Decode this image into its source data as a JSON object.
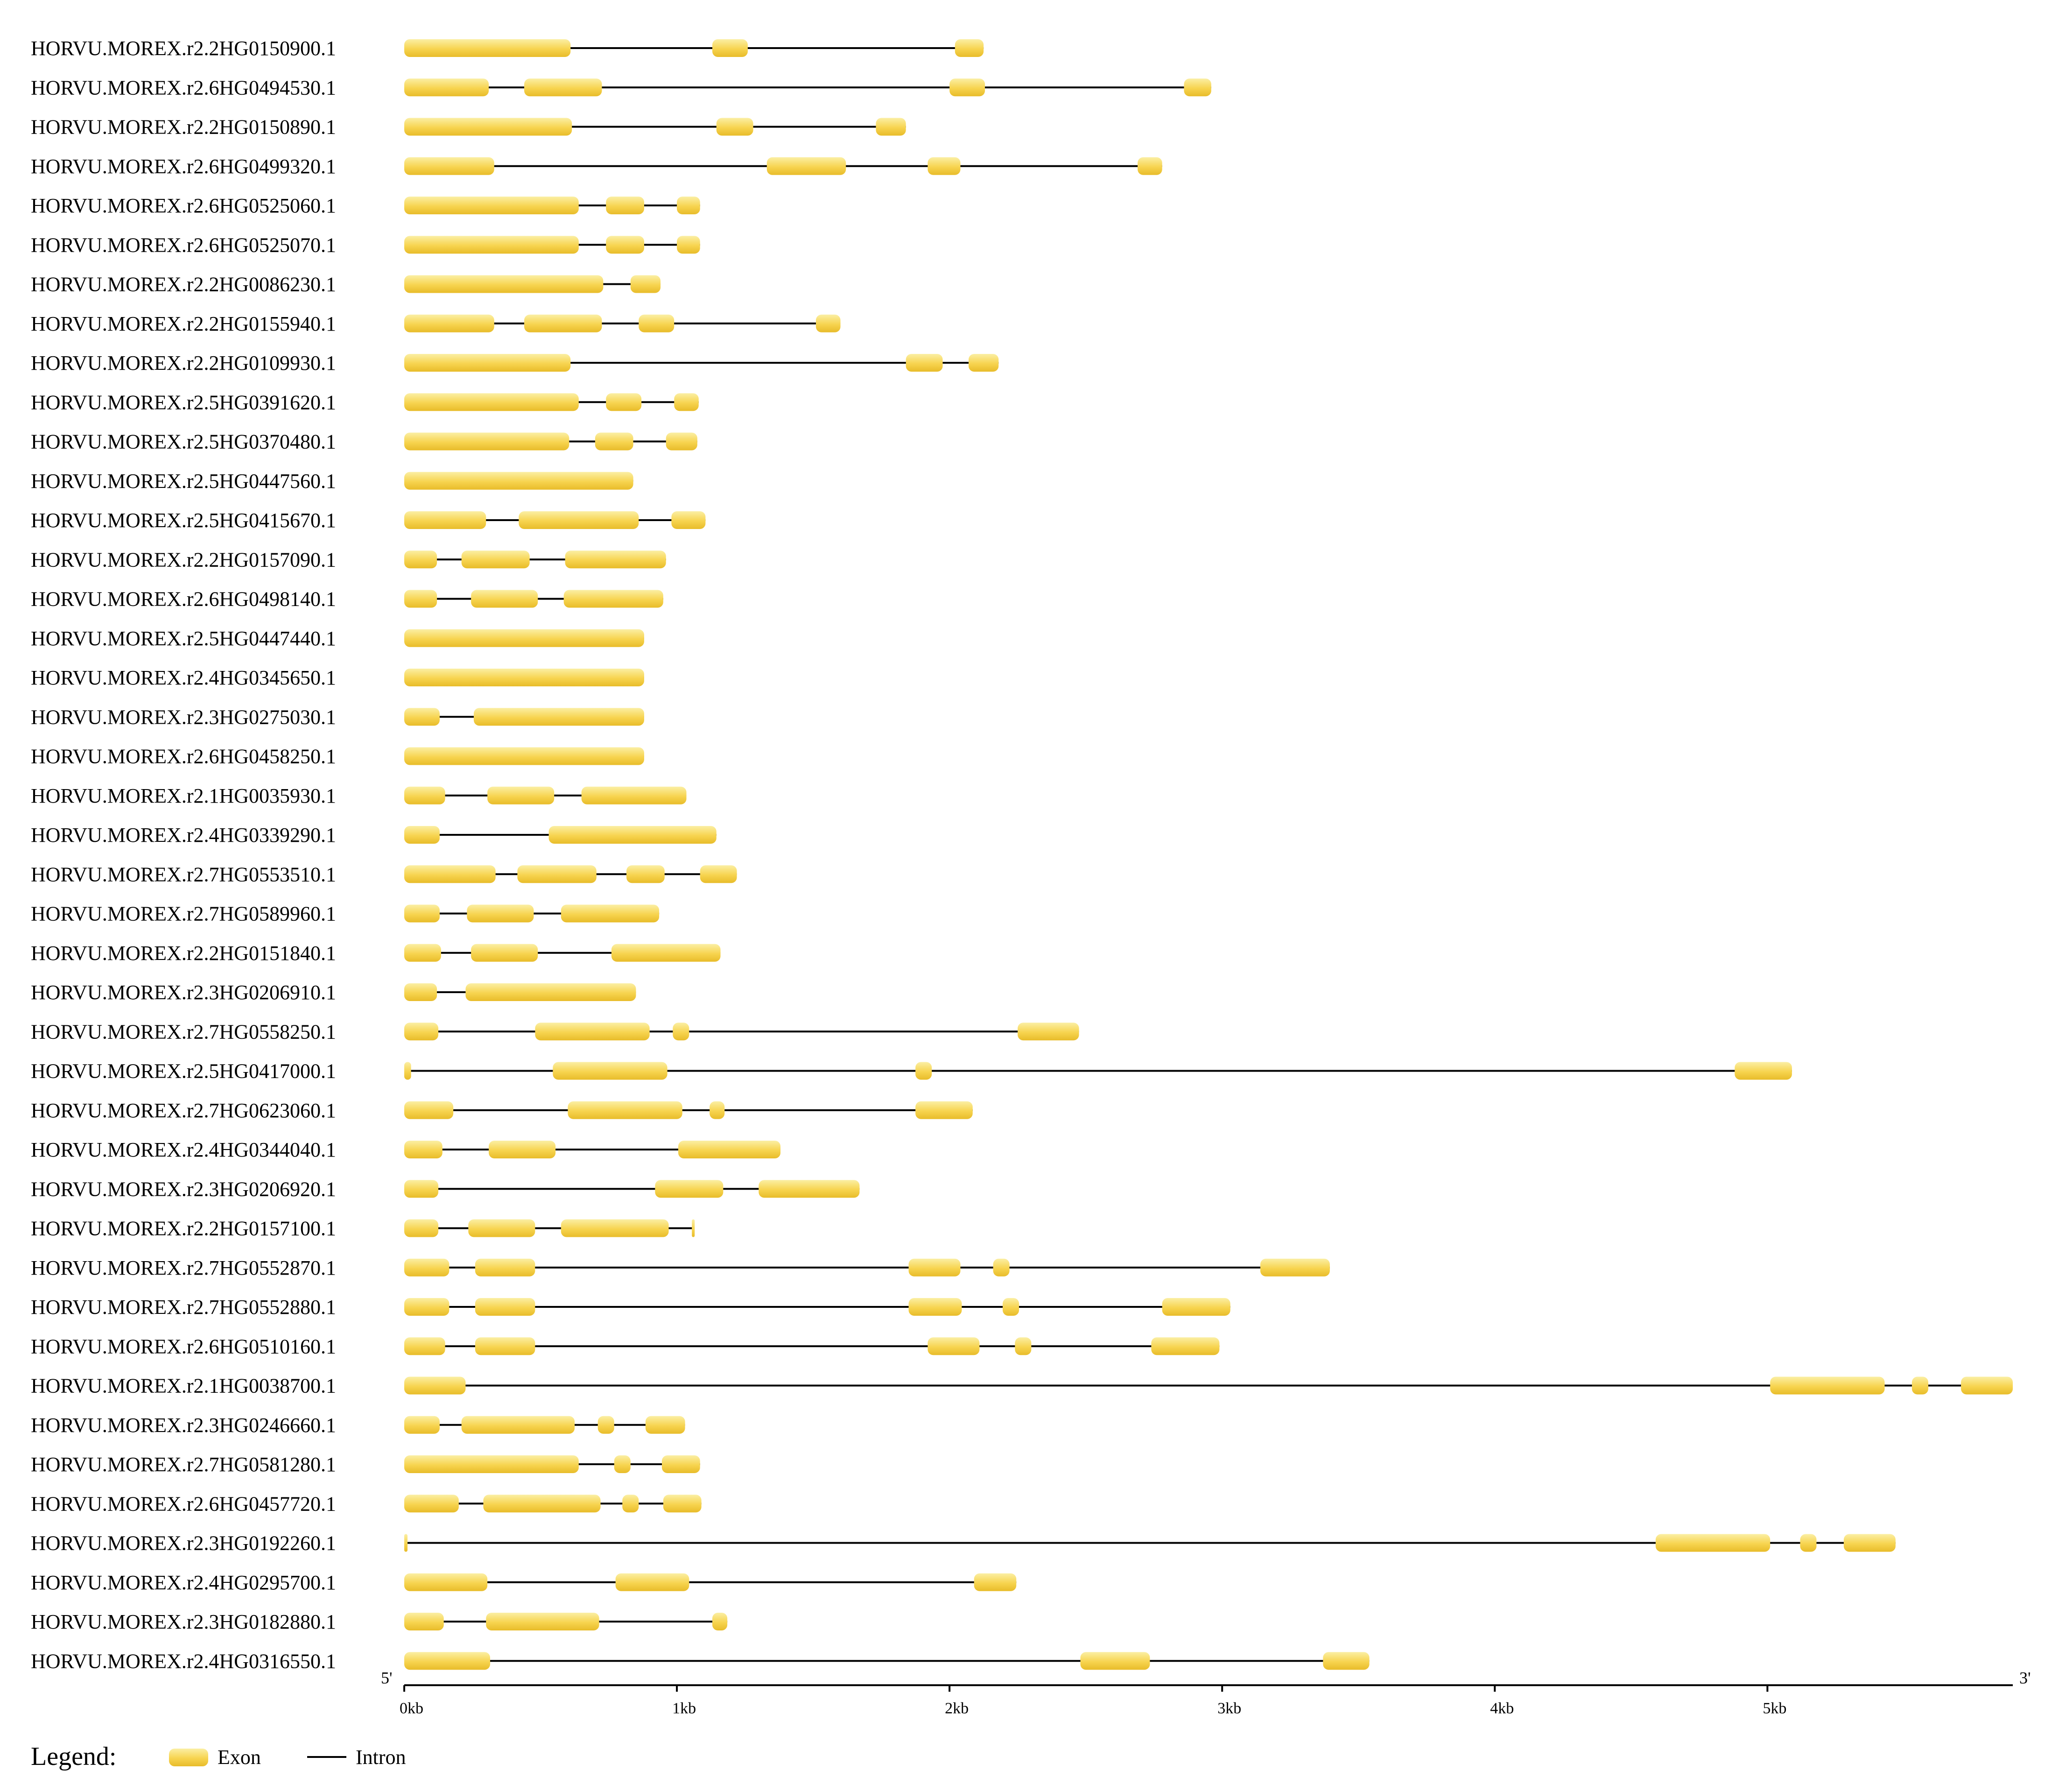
{
  "chart_data": {
    "type": "gene-structure",
    "unit": "bp",
    "axis": {
      "start_label": "5'",
      "end_label": "3'",
      "range": [
        0,
        5900
      ],
      "ticks": [
        {
          "value": 0,
          "label": "0kb"
        },
        {
          "value": 1000,
          "label": "1kb"
        },
        {
          "value": 2000,
          "label": "2kb"
        },
        {
          "value": 3000,
          "label": "3kb"
        },
        {
          "value": 4000,
          "label": "4kb"
        },
        {
          "value": 5000,
          "label": "5kb"
        }
      ]
    },
    "genes": [
      {
        "name": "HORVU.MOREX.r2.2HG0150900.1",
        "exons": [
          [
            0,
            610
          ],
          [
            1130,
            1260
          ],
          [
            2020,
            2125
          ]
        ]
      },
      {
        "name": "HORVU.MOREX.r2.6HG0494530.1",
        "exons": [
          [
            0,
            310
          ],
          [
            440,
            725
          ],
          [
            2000,
            2130
          ],
          [
            2860,
            2960
          ]
        ]
      },
      {
        "name": "HORVU.MOREX.r2.2HG0150890.1",
        "exons": [
          [
            0,
            615
          ],
          [
            1145,
            1280
          ],
          [
            1730,
            1840
          ]
        ]
      },
      {
        "name": "HORVU.MOREX.r2.6HG0499320.1",
        "exons": [
          [
            0,
            330
          ],
          [
            1330,
            1620
          ],
          [
            1920,
            2040
          ],
          [
            2690,
            2780
          ]
        ]
      },
      {
        "name": "HORVU.MOREX.r2.6HG0525060.1",
        "exons": [
          [
            0,
            640
          ],
          [
            740,
            880
          ],
          [
            1000,
            1085
          ]
        ]
      },
      {
        "name": "HORVU.MOREX.r2.6HG0525070.1",
        "exons": [
          [
            0,
            640
          ],
          [
            740,
            880
          ],
          [
            1000,
            1085
          ]
        ]
      },
      {
        "name": "HORVU.MOREX.r2.2HG0086230.1",
        "exons": [
          [
            0,
            730
          ],
          [
            830,
            940
          ]
        ]
      },
      {
        "name": "HORVU.MOREX.r2.2HG0155940.1",
        "exons": [
          [
            0,
            330
          ],
          [
            440,
            725
          ],
          [
            860,
            990
          ],
          [
            1510,
            1600
          ]
        ]
      },
      {
        "name": "HORVU.MOREX.r2.2HG0109930.1",
        "exons": [
          [
            0,
            610
          ],
          [
            1840,
            1975
          ],
          [
            2070,
            2180
          ]
        ]
      },
      {
        "name": "HORVU.MOREX.r2.5HG0391620.1",
        "exons": [
          [
            0,
            640
          ],
          [
            740,
            870
          ],
          [
            990,
            1080
          ]
        ]
      },
      {
        "name": "HORVU.MOREX.r2.5HG0370480.1",
        "exons": [
          [
            0,
            605
          ],
          [
            700,
            840
          ],
          [
            960,
            1075
          ]
        ]
      },
      {
        "name": "HORVU.MOREX.r2.5HG0447560.1",
        "exons": [
          [
            0,
            840
          ]
        ]
      },
      {
        "name": "HORVU.MOREX.r2.5HG0415670.1",
        "exons": [
          [
            0,
            300
          ],
          [
            420,
            860
          ],
          [
            980,
            1105
          ]
        ]
      },
      {
        "name": "HORVU.MOREX.r2.2HG0157090.1",
        "exons": [
          [
            0,
            120
          ],
          [
            210,
            460
          ],
          [
            590,
            960
          ]
        ]
      },
      {
        "name": "HORVU.MOREX.r2.6HG0498140.1",
        "exons": [
          [
            0,
            120
          ],
          [
            245,
            490
          ],
          [
            585,
            950
          ]
        ]
      },
      {
        "name": "HORVU.MOREX.r2.5HG0447440.1",
        "exons": [
          [
            0,
            880
          ]
        ]
      },
      {
        "name": "HORVU.MOREX.r2.4HG0345650.1",
        "exons": [
          [
            0,
            880
          ]
        ]
      },
      {
        "name": "HORVU.MOREX.r2.3HG0275030.1",
        "exons": [
          [
            0,
            130
          ],
          [
            255,
            880
          ]
        ]
      },
      {
        "name": "HORVU.MOREX.r2.6HG0458250.1",
        "exons": [
          [
            0,
            880
          ]
        ]
      },
      {
        "name": "HORVU.MOREX.r2.1HG0035930.1",
        "exons": [
          [
            0,
            150
          ],
          [
            305,
            550
          ],
          [
            650,
            1035
          ]
        ]
      },
      {
        "name": "HORVU.MOREX.r2.4HG0339290.1",
        "exons": [
          [
            0,
            130
          ],
          [
            530,
            1145
          ]
        ]
      },
      {
        "name": "HORVU.MOREX.r2.7HG0553510.1",
        "exons": [
          [
            0,
            335
          ],
          [
            415,
            705
          ],
          [
            815,
            955
          ],
          [
            1085,
            1220
          ]
        ]
      },
      {
        "name": "HORVU.MOREX.r2.7HG0589960.1",
        "exons": [
          [
            0,
            130
          ],
          [
            230,
            475
          ],
          [
            575,
            935
          ]
        ]
      },
      {
        "name": "HORVU.MOREX.r2.2HG0151840.1",
        "exons": [
          [
            0,
            135
          ],
          [
            245,
            490
          ],
          [
            760,
            1160
          ]
        ]
      },
      {
        "name": "HORVU.MOREX.r2.3HG0206910.1",
        "exons": [
          [
            0,
            120
          ],
          [
            225,
            850
          ]
        ]
      },
      {
        "name": "HORVU.MOREX.r2.7HG0558250.1",
        "exons": [
          [
            0,
            125
          ],
          [
            480,
            900
          ],
          [
            985,
            1045
          ],
          [
            2250,
            2475
          ]
        ]
      },
      {
        "name": "HORVU.MOREX.r2.5HG0417000.1",
        "exons": [
          [
            0,
            25
          ],
          [
            545,
            965
          ],
          [
            1875,
            1935
          ],
          [
            4880,
            5090
          ]
        ]
      },
      {
        "name": "HORVU.MOREX.r2.7HG0623060.1",
        "exons": [
          [
            0,
            180
          ],
          [
            600,
            1020
          ],
          [
            1120,
            1175
          ],
          [
            1875,
            2085
          ]
        ]
      },
      {
        "name": "HORVU.MOREX.r2.4HG0344040.1",
        "exons": [
          [
            0,
            140
          ],
          [
            310,
            555
          ],
          [
            1005,
            1380
          ]
        ]
      },
      {
        "name": "HORVU.MOREX.r2.3HG0206920.1",
        "exons": [
          [
            0,
            125
          ],
          [
            920,
            1170
          ],
          [
            1300,
            1670
          ]
        ]
      },
      {
        "name": "HORVU.MOREX.r2.2HG0157100.1",
        "exons": [
          [
            0,
            125
          ],
          [
            235,
            480
          ],
          [
            575,
            970
          ],
          [
            1055,
            1065
          ]
        ]
      },
      {
        "name": "HORVU.MOREX.r2.7HG0552870.1",
        "exons": [
          [
            0,
            165
          ],
          [
            260,
            480
          ],
          [
            1850,
            2040
          ],
          [
            2160,
            2220
          ],
          [
            3140,
            3395
          ]
        ]
      },
      {
        "name": "HORVU.MOREX.r2.7HG0552880.1",
        "exons": [
          [
            0,
            165
          ],
          [
            260,
            480
          ],
          [
            1850,
            2045
          ],
          [
            2195,
            2255
          ],
          [
            2780,
            3030
          ]
        ]
      },
      {
        "name": "HORVU.MOREX.r2.6HG0510160.1",
        "exons": [
          [
            0,
            150
          ],
          [
            260,
            480
          ],
          [
            1920,
            2110
          ],
          [
            2240,
            2300
          ],
          [
            2740,
            2990
          ]
        ]
      },
      {
        "name": "HORVU.MOREX.r2.1HG0038700.1",
        "exons": [
          [
            0,
            225
          ],
          [
            5010,
            5430
          ],
          [
            5530,
            5590
          ],
          [
            5710,
            5900
          ]
        ]
      },
      {
        "name": "HORVU.MOREX.r2.3HG0246660.1",
        "exons": [
          [
            0,
            130
          ],
          [
            210,
            625
          ],
          [
            710,
            770
          ],
          [
            885,
            1030
          ]
        ]
      },
      {
        "name": "HORVU.MOREX.r2.7HG0581280.1",
        "exons": [
          [
            0,
            640
          ],
          [
            770,
            830
          ],
          [
            945,
            1085
          ]
        ]
      },
      {
        "name": "HORVU.MOREX.r2.6HG0457720.1",
        "exons": [
          [
            0,
            200
          ],
          [
            290,
            720
          ],
          [
            800,
            860
          ],
          [
            950,
            1090
          ]
        ]
      },
      {
        "name": "HORVU.MOREX.r2.3HG0192260.1",
        "exons": [
          [
            0,
            12
          ],
          [
            4590,
            5010
          ],
          [
            5120,
            5180
          ],
          [
            5280,
            5470
          ]
        ]
      },
      {
        "name": "HORVU.MOREX.r2.4HG0295700.1",
        "exons": [
          [
            0,
            305
          ],
          [
            775,
            1045
          ],
          [
            2090,
            2245
          ]
        ]
      },
      {
        "name": "HORVU.MOREX.r2.3HG0182880.1",
        "exons": [
          [
            0,
            145
          ],
          [
            300,
            715
          ],
          [
            1130,
            1185
          ]
        ]
      },
      {
        "name": "HORVU.MOREX.r2.4HG0316550.1",
        "exons": [
          [
            0,
            315
          ],
          [
            2480,
            2735
          ],
          [
            3370,
            3540
          ]
        ]
      }
    ]
  },
  "legend": {
    "title": "Legend:",
    "items": [
      {
        "kind": "exon",
        "label": "Exon"
      },
      {
        "kind": "intron",
        "label": "Intron"
      }
    ]
  },
  "colors": {
    "exon_light": "#fbefa4",
    "exon_mid": "#f7d44f",
    "exon_dark": "#e8bc2a",
    "intron": "#000000"
  }
}
